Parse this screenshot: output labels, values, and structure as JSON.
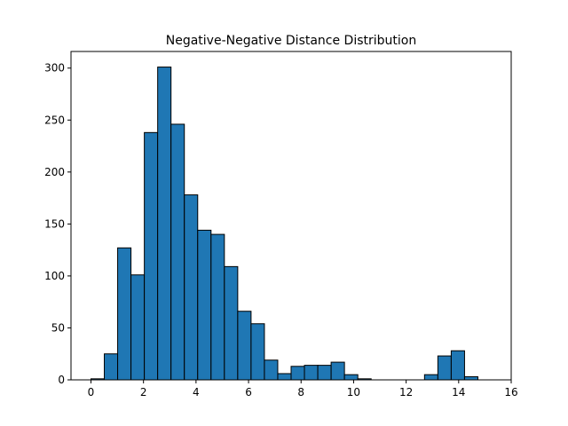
{
  "chart_data": {
    "type": "bar",
    "title": "Negative-Negative Distance Distribution",
    "xlabel": "",
    "ylabel": "",
    "xlim": [
      -0.76,
      16.0
    ],
    "ylim": [
      0,
      316
    ],
    "grid": false,
    "bar_color": "#1f77b4",
    "edge_color": "#000000",
    "bin_start": 0.0,
    "bin_width": 0.508,
    "values": [
      1,
      25,
      127,
      101,
      238,
      301,
      246,
      178,
      144,
      140,
      109,
      66,
      54,
      19,
      6,
      13,
      14,
      14,
      17,
      5,
      1,
      0,
      0,
      0,
      0,
      5,
      23,
      28,
      3
    ],
    "x_ticks": [
      0,
      2,
      4,
      6,
      8,
      10,
      12,
      14,
      16
    ],
    "y_ticks": [
      0,
      50,
      100,
      150,
      200,
      250,
      300
    ]
  }
}
